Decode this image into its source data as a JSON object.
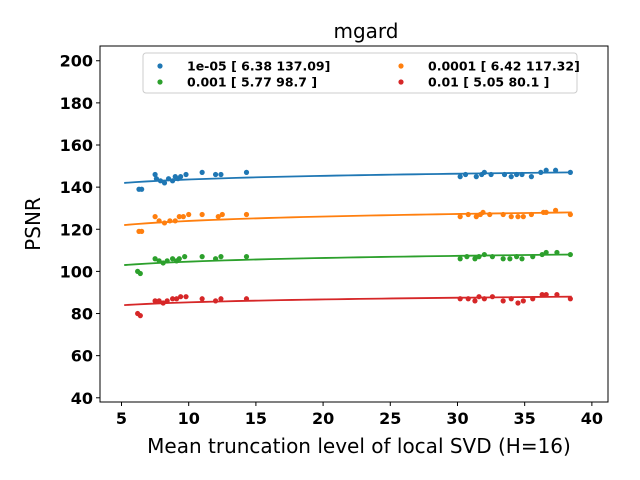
{
  "chart_data": {
    "type": "scatter",
    "title": "mgard",
    "xlabel": "Mean truncation level of local SVD (H=16)",
    "ylabel": "PSNR",
    "xlim": [
      3.4,
      41.2
    ],
    "ylim": [
      38,
      207
    ],
    "xticks": [
      5,
      10,
      15,
      20,
      25,
      30,
      35,
      40
    ],
    "yticks": [
      40,
      60,
      80,
      100,
      120,
      140,
      160,
      180,
      200
    ],
    "grid": false,
    "legend_position": "top-center",
    "series": [
      {
        "name": "1e-05 [  6.38 137.09]",
        "color": "#1f77b4",
        "points": [
          [
            6.3,
            139
          ],
          [
            6.5,
            139
          ],
          [
            7.5,
            146
          ],
          [
            7.6,
            144
          ],
          [
            7.9,
            143
          ],
          [
            8.2,
            142
          ],
          [
            8.5,
            144
          ],
          [
            8.8,
            143
          ],
          [
            9.0,
            145
          ],
          [
            9.2,
            144
          ],
          [
            9.4,
            145
          ],
          [
            9.8,
            146
          ],
          [
            11.0,
            147
          ],
          [
            12.0,
            146
          ],
          [
            12.4,
            146
          ],
          [
            14.3,
            147
          ],
          [
            30.2,
            145
          ],
          [
            30.6,
            146
          ],
          [
            31.4,
            145
          ],
          [
            31.8,
            146
          ],
          [
            32.0,
            147
          ],
          [
            32.5,
            146
          ],
          [
            33.5,
            146
          ],
          [
            34.0,
            145
          ],
          [
            34.4,
            146
          ],
          [
            34.8,
            146
          ],
          [
            35.5,
            145
          ],
          [
            36.2,
            147
          ],
          [
            36.6,
            148
          ],
          [
            37.3,
            148
          ],
          [
            38.4,
            147
          ]
        ],
        "fit_x": [
          5.2,
          38.5
        ],
        "fit_y": [
          142,
          147
        ]
      },
      {
        "name": "0.0001 [  6.42 117.32]",
        "color": "#ff7f0e",
        "points": [
          [
            6.3,
            119
          ],
          [
            6.5,
            119
          ],
          [
            7.5,
            126
          ],
          [
            7.8,
            124
          ],
          [
            8.2,
            123
          ],
          [
            8.6,
            124
          ],
          [
            9.0,
            124
          ],
          [
            9.3,
            126
          ],
          [
            9.6,
            126
          ],
          [
            10.0,
            127
          ],
          [
            11.0,
            127
          ],
          [
            12.2,
            126
          ],
          [
            12.5,
            127
          ],
          [
            14.3,
            127
          ],
          [
            30.2,
            126
          ],
          [
            30.8,
            127
          ],
          [
            31.4,
            126
          ],
          [
            31.7,
            127
          ],
          [
            31.9,
            128
          ],
          [
            32.4,
            127
          ],
          [
            33.4,
            127
          ],
          [
            34.0,
            126
          ],
          [
            34.5,
            126
          ],
          [
            34.9,
            126
          ],
          [
            35.5,
            127
          ],
          [
            36.4,
            128
          ],
          [
            36.6,
            128
          ],
          [
            37.3,
            129
          ],
          [
            38.4,
            127
          ]
        ],
        "fit_x": [
          5.2,
          38.5
        ],
        "fit_y": [
          122,
          128
        ]
      },
      {
        "name": "0.001 [ 5.77 98.7 ]",
        "color": "#2ca02c",
        "points": [
          [
            6.2,
            100
          ],
          [
            6.4,
            99
          ],
          [
            7.5,
            106
          ],
          [
            7.8,
            105
          ],
          [
            8.1,
            104
          ],
          [
            8.4,
            105
          ],
          [
            8.8,
            106
          ],
          [
            9.1,
            105
          ],
          [
            9.3,
            106
          ],
          [
            9.7,
            107
          ],
          [
            11.0,
            107
          ],
          [
            12.0,
            106
          ],
          [
            12.4,
            107
          ],
          [
            14.3,
            107
          ],
          [
            30.2,
            106
          ],
          [
            30.7,
            107
          ],
          [
            31.3,
            106
          ],
          [
            31.6,
            107
          ],
          [
            32.0,
            108
          ],
          [
            32.6,
            107
          ],
          [
            33.4,
            106
          ],
          [
            33.9,
            106
          ],
          [
            34.4,
            107
          ],
          [
            34.8,
            106
          ],
          [
            35.6,
            107
          ],
          [
            36.3,
            108
          ],
          [
            36.6,
            109
          ],
          [
            37.4,
            109
          ],
          [
            38.4,
            108
          ]
        ],
        "fit_x": [
          5.2,
          38.5
        ],
        "fit_y": [
          103,
          108
        ]
      },
      {
        "name": "0.01 [ 5.05 80.1 ]",
        "color": "#d62728",
        "points": [
          [
            6.2,
            80
          ],
          [
            6.4,
            79
          ],
          [
            7.5,
            86
          ],
          [
            7.8,
            86
          ],
          [
            8.1,
            85
          ],
          [
            8.4,
            86
          ],
          [
            8.8,
            87
          ],
          [
            9.1,
            87
          ],
          [
            9.4,
            88
          ],
          [
            9.8,
            88
          ],
          [
            11.0,
            87
          ],
          [
            12.0,
            86
          ],
          [
            12.4,
            87
          ],
          [
            14.3,
            87
          ],
          [
            30.2,
            87
          ],
          [
            30.8,
            87
          ],
          [
            31.3,
            86
          ],
          [
            31.6,
            88
          ],
          [
            32.0,
            87
          ],
          [
            32.6,
            88
          ],
          [
            33.4,
            86
          ],
          [
            34.0,
            87
          ],
          [
            34.5,
            85
          ],
          [
            34.9,
            86
          ],
          [
            35.6,
            87
          ],
          [
            36.3,
            89
          ],
          [
            36.6,
            89
          ],
          [
            37.4,
            89
          ],
          [
            38.4,
            87
          ]
        ],
        "fit_x": [
          5.2,
          38.5
        ],
        "fit_y": [
          84,
          88
        ]
      }
    ]
  }
}
